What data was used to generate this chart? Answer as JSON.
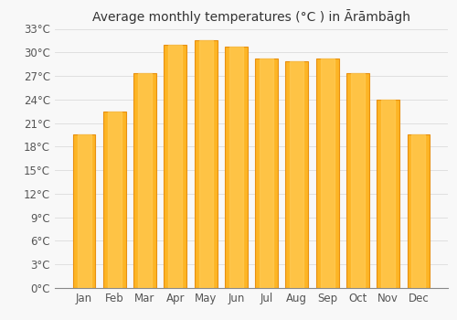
{
  "title": "Average monthly temperatures (°C ) in Ārāmbāgh",
  "months": [
    "Jan",
    "Feb",
    "Mar",
    "Apr",
    "May",
    "Jun",
    "Jul",
    "Aug",
    "Sep",
    "Oct",
    "Nov",
    "Dec"
  ],
  "values": [
    19.5,
    22.5,
    27.3,
    31.0,
    31.5,
    30.7,
    29.2,
    28.9,
    29.2,
    27.3,
    24.0,
    19.5
  ],
  "bar_color_main": "#FDB525",
  "bar_color_edge": "#E89010",
  "background_color": "#f8f8f8",
  "plot_bg_color": "#f8f8f8",
  "grid_color": "#e0e0e0",
  "ylim": [
    0,
    33
  ],
  "yticks": [
    0,
    3,
    6,
    9,
    12,
    15,
    18,
    21,
    24,
    27,
    30,
    33
  ],
  "ytick_labels": [
    "0°C",
    "3°C",
    "6°C",
    "9°C",
    "12°C",
    "15°C",
    "18°C",
    "21°C",
    "24°C",
    "27°C",
    "30°C",
    "33°C"
  ],
  "title_fontsize": 10,
  "tick_fontsize": 8.5,
  "bar_width": 0.75,
  "figsize": [
    5.0,
    3.5
  ],
  "dpi": 100
}
